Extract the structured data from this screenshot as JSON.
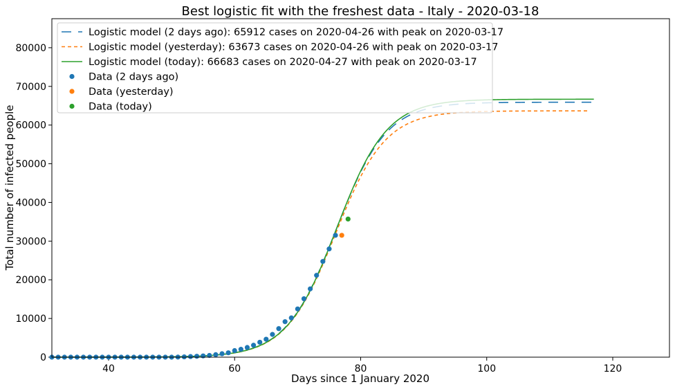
{
  "chart_data": {
    "type": "line",
    "title": "Best logistic fit with the freshest data - Italy - 2020-03-18",
    "xlabel": "Days since 1 January 2020",
    "ylabel": "Total number of infected people",
    "xlim": [
      31,
      129
    ],
    "ylim": [
      0,
      87500
    ],
    "xticks": [
      40,
      60,
      80,
      100,
      120
    ],
    "yticks": [
      0,
      10000,
      20000,
      30000,
      40000,
      50000,
      60000,
      70000,
      80000
    ],
    "grid": false,
    "legend_position": "top-left",
    "series": [
      {
        "name": "Logistic model (2 days ago): 65912 cases on 2020-04-26 with peak on 2020-03-17",
        "kind": "line",
        "style": "long-dash",
        "color": "#1f77b4",
        "logistic": {
          "a": 3.99,
          "b": 76.1,
          "c": 65912
        },
        "x_range": [
          31,
          117
        ]
      },
      {
        "name": "Logistic model (yesterday): 63673 cases on 2020-04-26 with peak on 2020-03-17",
        "kind": "line",
        "style": "short-dash",
        "color": "#ff7f0e",
        "logistic": {
          "a": 3.96,
          "b": 76.0,
          "c": 63673
        },
        "x_range": [
          31,
          116
        ]
      },
      {
        "name": "Logistic model (today): 66683 cases on 2020-04-27 with peak on 2020-03-17",
        "kind": "line",
        "style": "solid",
        "color": "#2ca02c",
        "logistic": {
          "a": 3.99,
          "b": 76.2,
          "c": 66683
        },
        "x_range": [
          31,
          117
        ]
      },
      {
        "name": "Data (2 days ago)",
        "kind": "scatter",
        "color": "#1f77b4",
        "x": [
          31,
          32,
          33,
          34,
          35,
          36,
          37,
          38,
          39,
          40,
          41,
          42,
          43,
          44,
          45,
          46,
          47,
          48,
          49,
          50,
          51,
          52,
          53,
          54,
          55,
          56,
          57,
          58,
          59,
          60,
          61,
          62,
          63,
          64,
          65,
          66,
          67,
          68,
          69,
          70,
          71,
          72,
          73,
          74,
          75,
          76
        ],
        "y": [
          3,
          3,
          3,
          3,
          3,
          3,
          3,
          3,
          3,
          3,
          3,
          3,
          3,
          3,
          3,
          3,
          3,
          3,
          3,
          3,
          20,
          79,
          150,
          227,
          320,
          445,
          650,
          888,
          1128,
          1694,
          2036,
          2502,
          3089,
          3858,
          4636,
          5883,
          7375,
          9172,
          10149,
          12462,
          15113,
          17660,
          21157,
          24747,
          27980,
          31506
        ]
      },
      {
        "name": "Data (yesterday)",
        "kind": "scatter",
        "color": "#ff7f0e",
        "x": [
          77
        ],
        "y": [
          31506
        ]
      },
      {
        "name": "Data (today)",
        "kind": "scatter",
        "color": "#2ca02c",
        "x": [
          78
        ],
        "y": [
          35713
        ]
      }
    ]
  }
}
